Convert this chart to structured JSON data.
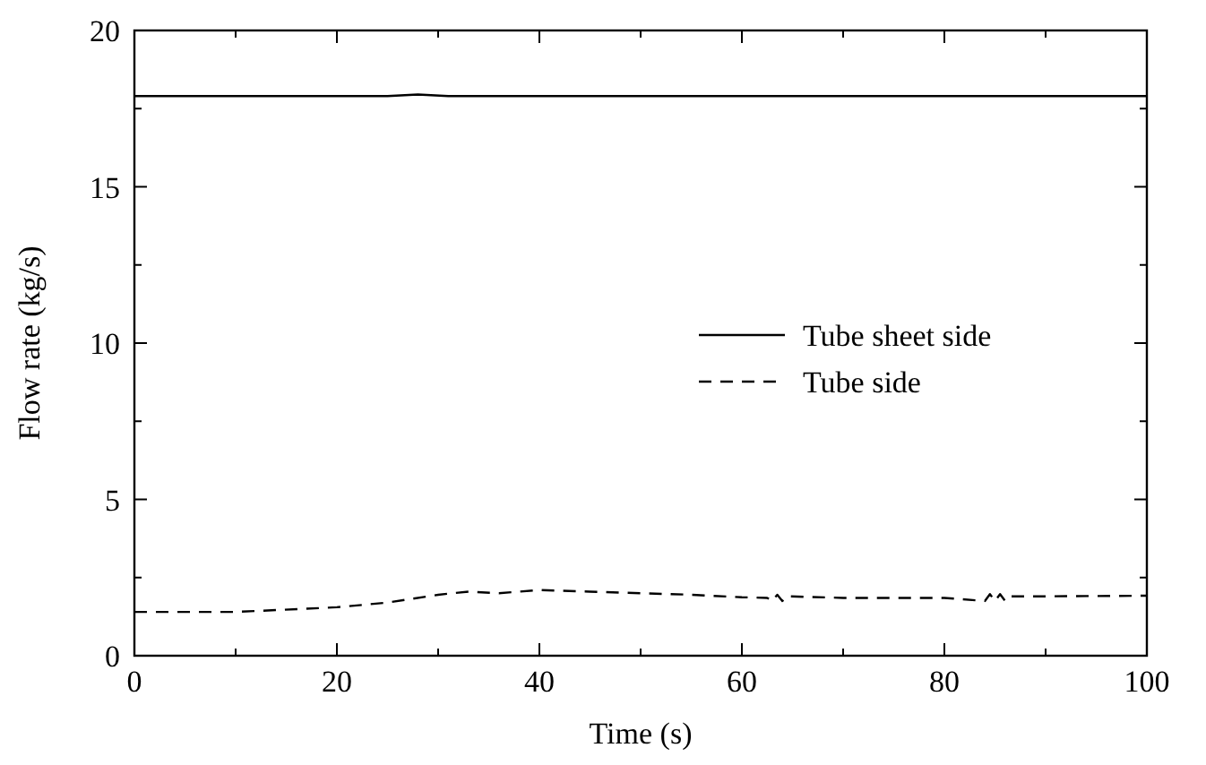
{
  "chart_data": {
    "type": "line",
    "xlabel": "Time (s)",
    "ylabel": "Flow rate (kg/s)",
    "xlim": [
      0,
      100
    ],
    "ylim": [
      0,
      20
    ],
    "xticks": [
      0,
      {
        "value": 10,
        "label": null
      },
      20,
      {
        "value": 30,
        "label": null
      },
      40,
      {
        "value": 50,
        "label": null
      },
      60,
      {
        "value": 70,
        "label": null
      },
      80,
      {
        "value": 90,
        "label": null
      },
      100
    ],
    "yticks": [
      0,
      {
        "value": 2.5,
        "label": null
      },
      5,
      {
        "value": 7.5,
        "label": null
      },
      10,
      {
        "value": 12.5,
        "label": null
      },
      15,
      {
        "value": 17.5,
        "label": null
      },
      20
    ],
    "legend": "right",
    "grid": false,
    "series": [
      {
        "name": "Tube sheet side",
        "color": "#000000",
        "line_style": "solid",
        "x": [
          0,
          25,
          28,
          31,
          100
        ],
        "values": [
          17.9,
          17.9,
          17.95,
          17.9,
          17.9
        ]
      },
      {
        "name": "Tube side",
        "color": "#000000",
        "line_style": "dashed",
        "x": [
          0,
          10,
          20,
          25,
          30,
          33,
          36,
          40,
          45,
          50,
          55,
          60,
          62.5,
          63,
          63.5,
          64,
          64.5,
          70,
          80,
          84,
          84.5,
          85,
          85.5,
          86,
          86.5,
          90,
          100
        ],
        "values": [
          1.4,
          1.4,
          1.55,
          1.7,
          1.95,
          2.05,
          2.0,
          2.1,
          2.05,
          2.0,
          1.95,
          1.87,
          1.85,
          1.75,
          1.95,
          1.75,
          1.9,
          1.85,
          1.85,
          1.75,
          1.97,
          1.75,
          1.97,
          1.75,
          1.9,
          1.9,
          1.92
        ]
      }
    ]
  }
}
